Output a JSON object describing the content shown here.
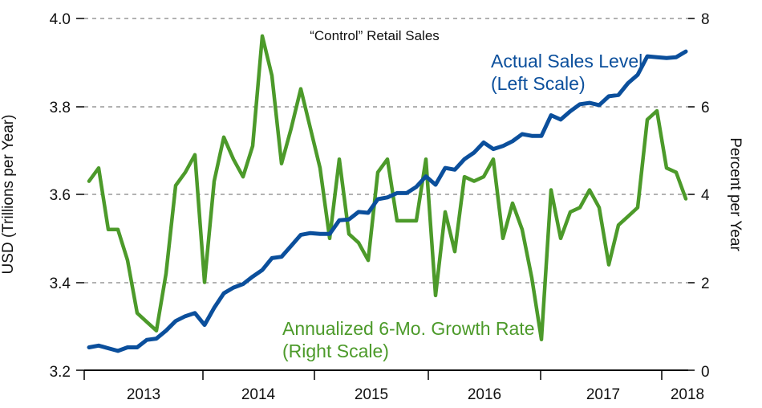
{
  "chart_data": {
    "type": "line",
    "title": "“Control” Retail Sales",
    "ylabel_left": "USD (Trillions per Year)",
    "ylabel_right": "Percent per Year",
    "ylim_left": [
      3.2,
      4.0
    ],
    "ylim_right": [
      0,
      8
    ],
    "y_ticks_left": [
      "4.0",
      "3.8",
      "3.6",
      "3.4",
      "3.2"
    ],
    "y_ticks_right": [
      "8",
      "6",
      "4",
      "2",
      "0"
    ],
    "x_ticks": [
      "2013",
      "2014",
      "2015",
      "2016",
      "2017",
      "2018"
    ],
    "series": [
      {
        "name": "Actual Sales Level",
        "sublabel": "(Left Scale)",
        "axis": "left",
        "color": "#0b4f9c",
        "values": [
          3.252,
          3.256,
          3.25,
          3.244,
          3.252,
          3.252,
          3.269,
          3.272,
          3.29,
          3.312,
          3.323,
          3.33,
          3.303,
          3.342,
          3.375,
          3.388,
          3.396,
          3.413,
          3.428,
          3.455,
          3.458,
          3.483,
          3.508,
          3.512,
          3.51,
          3.51,
          3.541,
          3.543,
          3.56,
          3.558,
          3.589,
          3.593,
          3.603,
          3.603,
          3.617,
          3.641,
          3.622,
          3.66,
          3.656,
          3.68,
          3.695,
          3.718,
          3.703,
          3.71,
          3.721,
          3.737,
          3.733,
          3.733,
          3.78,
          3.77,
          3.789,
          3.805,
          3.808,
          3.803,
          3.823,
          3.826,
          3.853,
          3.872,
          3.914,
          3.912,
          3.91,
          3.912,
          3.925
        ]
      },
      {
        "name": "Annualized 6-Mo. Growth Rate",
        "sublabel": "(Right Scale)",
        "axis": "right",
        "color": "#4c9a2a",
        "values": [
          4.3,
          4.6,
          3.2,
          3.2,
          2.5,
          1.3,
          1.1,
          0.9,
          2.2,
          4.2,
          4.5,
          4.9,
          2.0,
          4.3,
          5.3,
          4.8,
          4.4,
          5.1,
          7.6,
          6.7,
          4.7,
          5.5,
          6.4,
          5.5,
          4.6,
          3.0,
          4.8,
          3.1,
          2.9,
          2.5,
          4.5,
          4.8,
          3.4,
          3.4,
          3.4,
          4.8,
          1.7,
          3.6,
          2.7,
          4.4,
          4.3,
          4.4,
          4.8,
          3.0,
          3.8,
          3.2,
          2.1,
          0.7,
          4.1,
          3.0,
          3.6,
          3.7,
          4.1,
          3.7,
          2.4,
          3.3,
          3.5,
          3.7,
          5.7,
          5.9,
          4.6,
          4.5,
          3.9
        ]
      }
    ]
  }
}
